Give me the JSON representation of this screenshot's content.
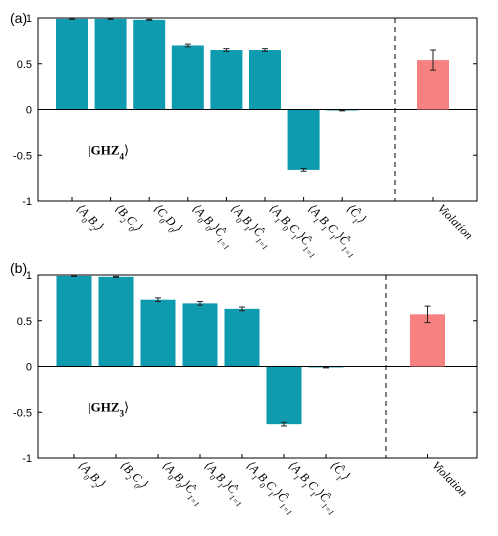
{
  "chart_data": [
    {
      "type": "bar",
      "panel_label": "(a)",
      "state_label": {
        "text": "GHZ",
        "sub": "4"
      },
      "ylim": [
        -1,
        1
      ],
      "yticks": [
        "-1",
        "-0.5",
        "0",
        "0.5",
        "1"
      ],
      "grid": false,
      "categories": [
        {
          "parts": [
            [
              "⟨A",
              ""
            ],
            [
              "0",
              "sub"
            ],
            [
              "B",
              ""
            ],
            [
              "2",
              "sub"
            ],
            [
              "⟩",
              ""
            ]
          ]
        },
        {
          "parts": [
            [
              "⟨B",
              ""
            ],
            [
              "2",
              "sub"
            ],
            [
              "C",
              ""
            ],
            [
              "0",
              "sub"
            ],
            [
              "⟩",
              ""
            ]
          ]
        },
        {
          "parts": [
            [
              "⟨C",
              ""
            ],
            [
              "0",
              "sub"
            ],
            [
              "D",
              ""
            ],
            [
              "0",
              "sub"
            ],
            [
              "⟩",
              ""
            ]
          ]
        },
        {
          "parts": [
            [
              "⟨A",
              ""
            ],
            [
              "0",
              "sub"
            ],
            [
              "B",
              ""
            ],
            [
              "0",
              "sub"
            ],
            [
              "⟩",
              ""
            ],
            [
              "Ĉ",
              ""
            ],
            [
              "1",
              "sub"
            ],
            [
              "=1",
              "sub"
            ]
          ]
        },
        {
          "parts": [
            [
              "⟨A",
              ""
            ],
            [
              "0",
              "sub"
            ],
            [
              "B",
              ""
            ],
            [
              "1",
              "sub"
            ],
            [
              "⟩",
              ""
            ],
            [
              "Ĉ",
              ""
            ],
            [
              "1",
              "sub"
            ],
            [
              "=1",
              "sub"
            ]
          ]
        },
        {
          "parts": [
            [
              "⟨A",
              ""
            ],
            [
              "1",
              "sub"
            ],
            [
              "B",
              ""
            ],
            [
              "0",
              "sub"
            ],
            [
              "C",
              ""
            ],
            [
              "1",
              "sub"
            ],
            [
              "⟩",
              ""
            ],
            [
              "Ĉ",
              ""
            ],
            [
              "1",
              "sub"
            ],
            [
              "=1",
              "sub"
            ]
          ]
        },
        {
          "parts": [
            [
              "⟨A",
              ""
            ],
            [
              "1",
              "sub"
            ],
            [
              "B",
              ""
            ],
            [
              "1",
              "sub"
            ],
            [
              "C",
              ""
            ],
            [
              "1",
              "sub"
            ],
            [
              "⟩",
              ""
            ],
            [
              "Ĉ",
              ""
            ],
            [
              "1",
              "sub"
            ],
            [
              "=1",
              "sub"
            ]
          ]
        },
        {
          "parts": [
            [
              "⟨Ĉ",
              ""
            ],
            [
              "1",
              "sub"
            ],
            [
              "⟩",
              ""
            ]
          ]
        }
      ],
      "values": [
        0.99,
        0.99,
        0.98,
        0.7,
        0.65,
        0.65,
        -0.66,
        -0.01
      ],
      "errors": [
        0.005,
        0.005,
        0.005,
        0.015,
        0.015,
        0.015,
        0.015,
        0.005
      ],
      "violation": {
        "label": "Violation",
        "value": 0.54,
        "error": 0.11
      },
      "colors": {
        "bars": "#0e9bb0",
        "violation": "#f78080"
      }
    },
    {
      "type": "bar",
      "panel_label": "(b)",
      "state_label": {
        "text": "GHZ",
        "sub": "3"
      },
      "ylim": [
        -1,
        1
      ],
      "yticks": [
        "-1",
        "-0.5",
        "0",
        "0.5",
        "1"
      ],
      "grid": false,
      "categories": [
        {
          "parts": [
            [
              "⟨A",
              ""
            ],
            [
              "0",
              "sub"
            ],
            [
              "B",
              ""
            ],
            [
              "2",
              "sub"
            ],
            [
              "⟩",
              ""
            ]
          ]
        },
        {
          "parts": [
            [
              "⟨B",
              ""
            ],
            [
              "2",
              "sub"
            ],
            [
              "C",
              ""
            ],
            [
              "0",
              "sub"
            ],
            [
              "⟩",
              ""
            ]
          ]
        },
        {
          "parts": [
            [
              "⟨A",
              ""
            ],
            [
              "0",
              "sub"
            ],
            [
              "B",
              ""
            ],
            [
              "0",
              "sub"
            ],
            [
              "⟩",
              ""
            ],
            [
              "Ĉ",
              ""
            ],
            [
              "1",
              "sub"
            ],
            [
              "=1",
              "sub"
            ]
          ]
        },
        {
          "parts": [
            [
              "⟨A",
              ""
            ],
            [
              "0",
              "sub"
            ],
            [
              "B",
              ""
            ],
            [
              "1",
              "sub"
            ],
            [
              "⟩",
              ""
            ],
            [
              "Ĉ",
              ""
            ],
            [
              "1",
              "sub"
            ],
            [
              "=1",
              "sub"
            ]
          ]
        },
        {
          "parts": [
            [
              "⟨A",
              ""
            ],
            [
              "1",
              "sub"
            ],
            [
              "B",
              ""
            ],
            [
              "0",
              "sub"
            ],
            [
              "C",
              ""
            ],
            [
              "1",
              "sub"
            ],
            [
              "⟩",
              ""
            ],
            [
              "Ĉ",
              ""
            ],
            [
              "1",
              "sub"
            ],
            [
              "=1",
              "sub"
            ]
          ]
        },
        {
          "parts": [
            [
              "⟨A",
              ""
            ],
            [
              "1",
              "sub"
            ],
            [
              "B",
              ""
            ],
            [
              "1",
              "sub"
            ],
            [
              "C",
              ""
            ],
            [
              "1",
              "sub"
            ],
            [
              "⟩",
              ""
            ],
            [
              "Ĉ",
              ""
            ],
            [
              "1",
              "sub"
            ],
            [
              "=1",
              "sub"
            ]
          ]
        },
        {
          "parts": [
            [
              "⟨Ĉ",
              ""
            ],
            [
              "1",
              "sub"
            ],
            [
              "⟩",
              ""
            ]
          ]
        }
      ],
      "values": [
        0.99,
        0.98,
        0.73,
        0.69,
        0.63,
        -0.63,
        -0.01
      ],
      "errors": [
        0.005,
        0.005,
        0.02,
        0.02,
        0.02,
        0.02,
        0.005
      ],
      "violation": {
        "label": "Violation",
        "value": 0.57,
        "error": 0.09
      },
      "colors": {
        "bars": "#0e9bb0",
        "violation": "#f78080"
      }
    }
  ]
}
